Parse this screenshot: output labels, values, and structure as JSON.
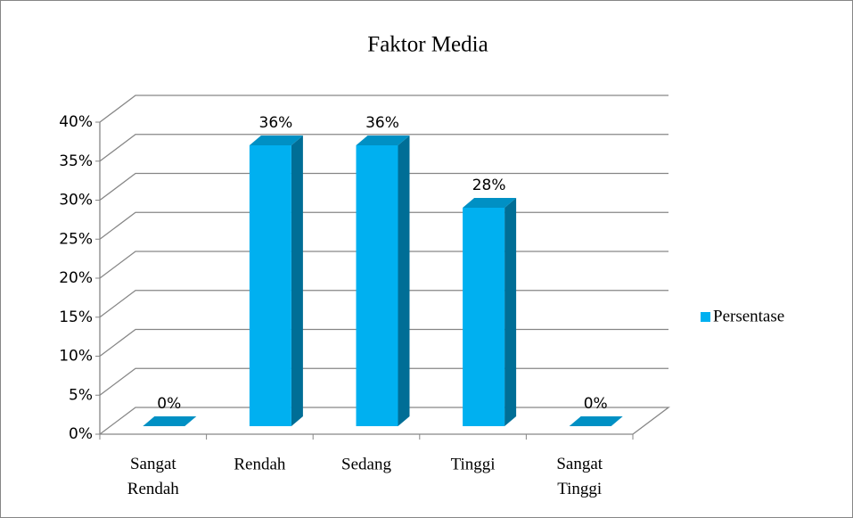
{
  "chart_data": {
    "type": "bar3d",
    "title": "Faktor Media",
    "categories": [
      "Sangat Rendah",
      "Rendah",
      "Sedang",
      "Tinggi",
      "Sangat Tinggi"
    ],
    "series": [
      {
        "name": "Persentase",
        "color": "#00b0f0",
        "values": [
          0,
          36,
          36,
          28,
          0
        ],
        "value_labels": [
          "0%",
          "36%",
          "36%",
          "28%",
          "0%"
        ]
      }
    ],
    "ylim": [
      0,
      40
    ],
    "yticks": [
      {
        "value": 0,
        "label": "0%"
      },
      {
        "value": 5,
        "label": "5%"
      },
      {
        "value": 10,
        "label": "10%"
      },
      {
        "value": 15,
        "label": "15%"
      },
      {
        "value": 20,
        "label": "20%"
      },
      {
        "value": 25,
        "label": "25%"
      },
      {
        "value": 30,
        "label": "30%"
      },
      {
        "value": 35,
        "label": "35%"
      },
      {
        "value": 40,
        "label": "40%"
      }
    ],
    "grid": true,
    "legend": "right"
  }
}
